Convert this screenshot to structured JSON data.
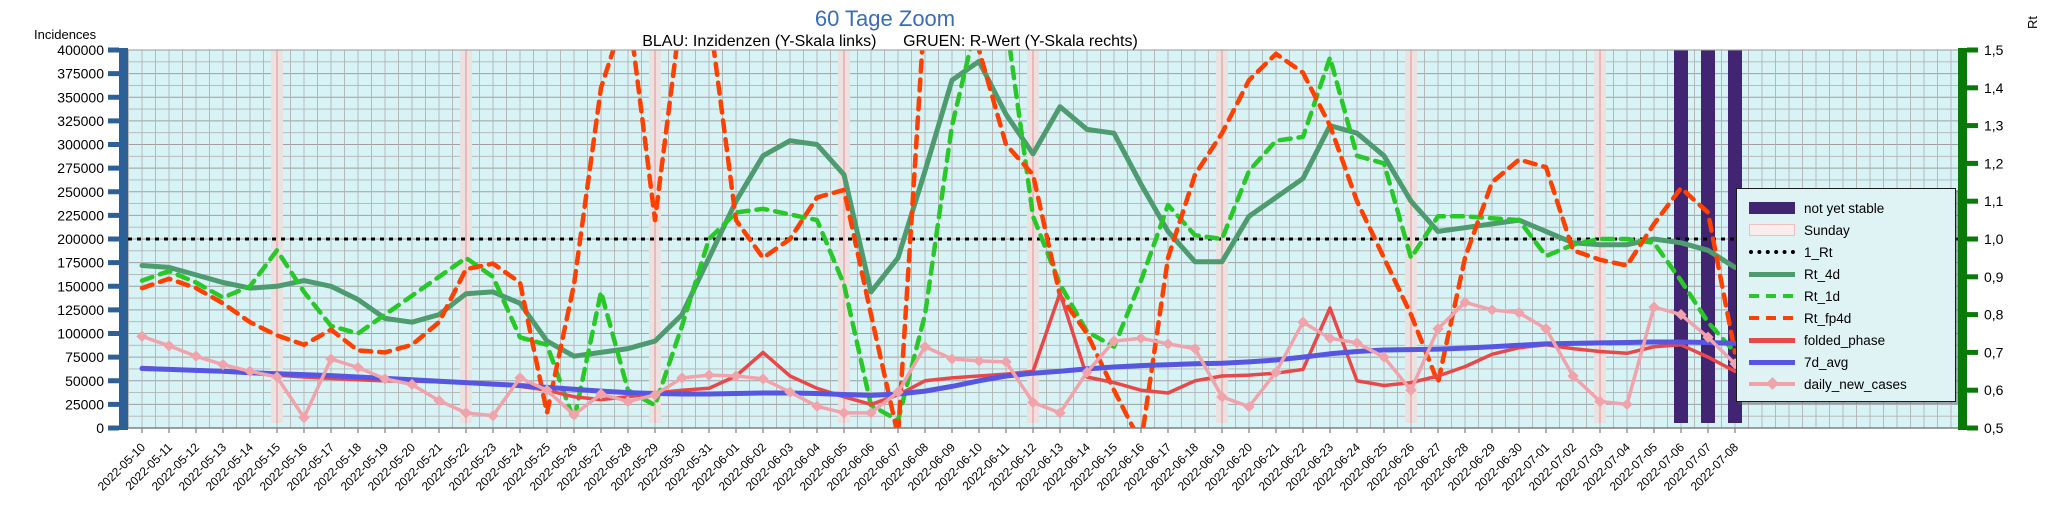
{
  "title": "60 Tage Zoom",
  "title_color": "#3a6db8",
  "subtitle": "BLAU: Inzidenzen (Y-Skala links)      GRUEN: R-Wert (Y-Skala rechts)",
  "left_axis": {
    "label": "Incidences",
    "min": 0,
    "max": 400000,
    "tick_step": 25000,
    "spine_color": "#2d6096",
    "tick_label_color": "#000000"
  },
  "right_axis": {
    "label": "Rt",
    "min": 0.5,
    "max": 1.5,
    "tick_step": 0.1,
    "decimal_separator": ",",
    "spine_color": "#087a08",
    "tick_label_color": "#000000"
  },
  "colors": {
    "plot_background": "#d8f3f6",
    "grid": "#b3b3b3",
    "grid_major": "#a0a0a0",
    "sunday_band_fill": "#ebe1e1",
    "sunday_band_line": "#edb7b7",
    "not_yet_stable_fill": "#412472",
    "one_rt": "#000000"
  },
  "legend": [
    {
      "label": "not yet stable",
      "swatch": "band",
      "color": "#412472"
    },
    {
      "label": "Sunday",
      "swatch": "band-outline",
      "color": "#f8ecec",
      "border": "#f0c0c0"
    },
    {
      "label": "1_Rt",
      "swatch": "dotted",
      "color": "#000000"
    },
    {
      "label": "Rt_4d",
      "swatch": "solid",
      "color": "#4e9b6f"
    },
    {
      "label": "Rt_1d",
      "swatch": "dashed",
      "color": "#28c828"
    },
    {
      "label": "Rt_fp4d",
      "swatch": "dashed",
      "color": "#ff4000"
    },
    {
      "label": "folded_phase",
      "swatch": "solid",
      "color": "#ea4848"
    },
    {
      "label": "7d_avg",
      "swatch": "solid",
      "color": "#5656e0"
    },
    {
      "label": "daily_new_cases",
      "swatch": "marker-line",
      "color": "#f0a3ab"
    }
  ],
  "chart_data": {
    "type": "line",
    "x": [
      "2022-05-10",
      "2022-05-11",
      "2022-05-12",
      "2022-05-13",
      "2022-05-14",
      "2022-05-15",
      "2022-05-16",
      "2022-05-17",
      "2022-05-18",
      "2022-05-19",
      "2022-05-20",
      "2022-05-21",
      "2022-05-22",
      "2022-05-23",
      "2022-05-24",
      "2022-05-25",
      "2022-05-26",
      "2022-05-27",
      "2022-05-28",
      "2022-05-29",
      "2022-05-30",
      "2022-05-31",
      "2022-06-01",
      "2022-06-02",
      "2022-06-03",
      "2022-06-04",
      "2022-06-05",
      "2022-06-06",
      "2022-06-07",
      "2022-06-08",
      "2022-06-09",
      "2022-06-10",
      "2022-06-11",
      "2022-06-12",
      "2022-06-13",
      "2022-06-14",
      "2022-06-15",
      "2022-06-16",
      "2022-06-17",
      "2022-06-18",
      "2022-06-19",
      "2022-06-20",
      "2022-06-21",
      "2022-06-22",
      "2022-06-23",
      "2022-06-24",
      "2022-06-25",
      "2022-06-26",
      "2022-06-27",
      "2022-06-28",
      "2022-06-29",
      "2022-06-30",
      "2022-07-01",
      "2022-07-02",
      "2022-07-03",
      "2022-07-04",
      "2022-07-05",
      "2022-07-06",
      "2022-07-07",
      "2022-07-08"
    ],
    "sunday_indices": [
      5,
      12,
      19,
      26,
      33,
      40,
      47,
      54
    ],
    "not_yet_stable_indices": [
      57,
      58,
      59
    ],
    "one_rt_value": 1.0,
    "ylim_left": [
      0,
      400000
    ],
    "ylim_right": [
      0.5,
      1.5
    ],
    "grid": true,
    "legend_position": "right",
    "series": [
      {
        "name": "Rt_4d",
        "axis": "right",
        "style": "solid",
        "width": 5,
        "color": "#4e9b6f",
        "values": [
          0.93,
          0.925,
          0.905,
          0.885,
          0.87,
          0.875,
          0.89,
          0.875,
          0.84,
          0.79,
          0.78,
          0.8,
          0.855,
          0.86,
          0.83,
          0.73,
          0.69,
          0.7,
          0.71,
          0.73,
          0.8,
          0.95,
          1.1,
          1.22,
          1.26,
          1.25,
          1.17,
          0.86,
          0.95,
          1.18,
          1.42,
          1.47,
          1.33,
          1.225,
          1.35,
          1.29,
          1.28,
          1.145,
          1.02,
          0.94,
          0.94,
          1.06,
          1.11,
          1.16,
          1.3,
          1.28,
          1.22,
          1.1,
          1.02,
          1.03,
          1.04,
          1.05,
          1.02,
          0.99,
          0.985,
          0.985,
          1.0,
          0.99,
          0.97,
          0.925
        ]
      },
      {
        "name": "Rt_1d",
        "axis": "right",
        "style": "dashed",
        "width": 4.5,
        "color": "#28c828",
        "values": [
          0.89,
          0.915,
          0.885,
          0.845,
          0.875,
          0.97,
          0.86,
          0.77,
          0.75,
          0.8,
          0.85,
          0.9,
          0.95,
          0.9,
          0.74,
          0.72,
          0.52,
          0.86,
          0.6,
          0.56,
          0.77,
          1.0,
          1.07,
          1.08,
          1.065,
          1.05,
          0.88,
          0.56,
          0.52,
          0.8,
          1.3,
          1.6,
          1.58,
          1.06,
          0.88,
          0.755,
          0.715,
          0.89,
          1.09,
          1.01,
          1.0,
          1.18,
          1.26,
          1.27,
          1.48,
          1.22,
          1.2,
          0.95,
          1.06,
          1.06,
          1.055,
          1.05,
          0.955,
          0.985,
          1.0,
          1.0,
          0.99,
          0.89,
          0.78,
          0.7
        ]
      },
      {
        "name": "Rt_fp4d",
        "axis": "right",
        "style": "dashed",
        "width": 4.5,
        "color": "#ff4000",
        "values": [
          0.87,
          0.895,
          0.87,
          0.83,
          0.78,
          0.745,
          0.72,
          0.76,
          0.705,
          0.7,
          0.72,
          0.78,
          0.92,
          0.935,
          0.885,
          0.54,
          0.88,
          1.4,
          1.62,
          1.05,
          1.62,
          1.6,
          1.05,
          0.95,
          1.0,
          1.11,
          1.13,
          0.8,
          0.48,
          1.62,
          1.6,
          1.5,
          1.25,
          1.17,
          0.85,
          0.75,
          0.6,
          0.46,
          0.95,
          1.17,
          1.28,
          1.42,
          1.49,
          1.44,
          1.3,
          1.1,
          0.95,
          0.8,
          0.62,
          0.95,
          1.15,
          1.21,
          1.19,
          0.97,
          0.945,
          0.93,
          1.04,
          1.135,
          1.07,
          0.7
        ]
      },
      {
        "name": "folded_phase",
        "axis": "left",
        "style": "solid",
        "width": 3.5,
        "color": "#ea4848",
        "values": [
          64000,
          62500,
          61000,
          59500,
          58000,
          56000,
          54000,
          52500,
          51000,
          50000,
          49500,
          49000,
          48500,
          46500,
          44000,
          40000,
          33000,
          30000,
          33000,
          37000,
          40000,
          42000,
          55000,
          80000,
          55000,
          42000,
          33000,
          25000,
          35000,
          50000,
          53000,
          55000,
          57000,
          60000,
          143000,
          54000,
          48000,
          40000,
          37000,
          50000,
          55000,
          56000,
          58000,
          62000,
          127000,
          50000,
          45000,
          48000,
          55000,
          65000,
          78000,
          85000,
          88000,
          84000,
          81000,
          79000,
          86000,
          88000,
          75000,
          60000
        ]
      },
      {
        "name": "7d_avg",
        "axis": "left",
        "style": "solid",
        "width": 5,
        "color": "#5656e0",
        "values": [
          63000,
          62000,
          61000,
          60000,
          58500,
          57500,
          56500,
          55500,
          54000,
          52500,
          51000,
          49500,
          48000,
          46500,
          45000,
          43000,
          41000,
          39000,
          37500,
          36500,
          36000,
          36000,
          36500,
          37000,
          37000,
          36500,
          35500,
          34500,
          36000,
          39000,
          44000,
          50000,
          55000,
          58000,
          60000,
          62500,
          64500,
          66000,
          67000,
          68000,
          68500,
          70000,
          72000,
          75000,
          78500,
          81000,
          82500,
          83000,
          83500,
          84500,
          86000,
          87500,
          89000,
          89500,
          90000,
          90500,
          91000,
          91000,
          90500,
          89500
        ]
      },
      {
        "name": "daily_new_cases",
        "axis": "left",
        "style": "solid",
        "width": 3.5,
        "color": "#f0a3ab",
        "marker": "diamond",
        "values": [
          97000,
          87000,
          76000,
          67000,
          60000,
          54000,
          11000,
          73000,
          64000,
          52000,
          46000,
          29000,
          16000,
          13000,
          53000,
          40000,
          14000,
          36000,
          28000,
          35000,
          53000,
          56000,
          55000,
          52000,
          38000,
          23000,
          16000,
          16000,
          38000,
          86000,
          73000,
          71000,
          70000,
          27000,
          16000,
          59000,
          92000,
          95000,
          89000,
          84000,
          33000,
          22500,
          59000,
          112000,
          95000,
          90000,
          75000,
          40000,
          105000,
          133000,
          125000,
          122000,
          105000,
          55000,
          28000,
          25000,
          128000,
          120000,
          96000,
          68000
        ]
      }
    ]
  }
}
